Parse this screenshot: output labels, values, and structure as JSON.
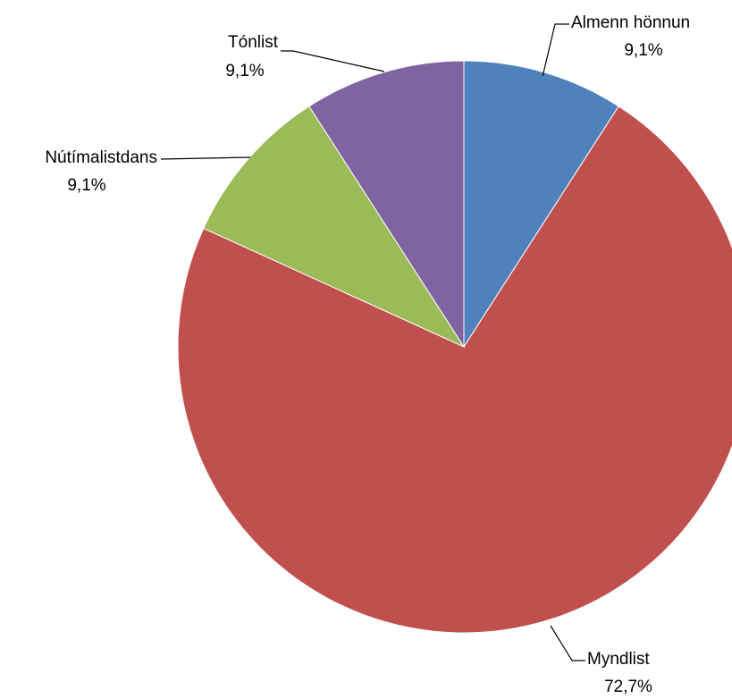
{
  "chart_data": {
    "type": "pie",
    "slices": [
      {
        "label": "Almenn hönnun",
        "value": 9.1,
        "value_label": "9,1%",
        "color": "#4F81BD"
      },
      {
        "label": "Myndlist",
        "value": 72.7,
        "value_label": "72,7%",
        "color": "#C0504D"
      },
      {
        "label": "Nútímalistdans",
        "value": 9.1,
        "value_label": "9,1%",
        "color": "#9BBB59"
      },
      {
        "label": "Tónlist",
        "value": 9.1,
        "value_label": "9,1%",
        "color": "#8064A2"
      }
    ],
    "start_angle": "12 o'clock",
    "direction": "clockwise",
    "legend": "none",
    "data_labels": "outside with leader lines"
  }
}
